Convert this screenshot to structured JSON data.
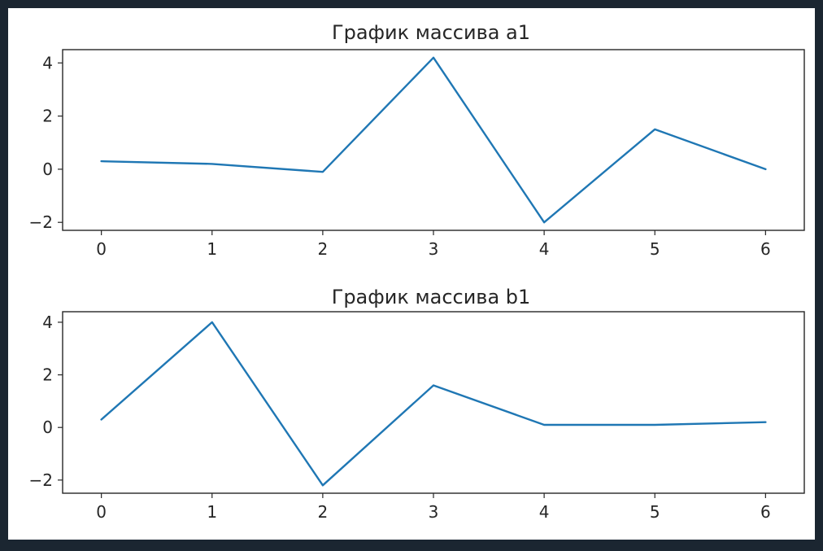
{
  "chart_data": [
    {
      "type": "line",
      "title": "График массива a1",
      "x": [
        0,
        1,
        2,
        3,
        4,
        5,
        6
      ],
      "series": [
        {
          "values": [
            0.3,
            0.2,
            -0.1,
            4.2,
            -2.0,
            1.5,
            0.0
          ]
        }
      ],
      "xlim": [
        -0.35,
        6.35
      ],
      "ylim": [
        -2.3,
        4.5
      ],
      "xticks": [
        "0",
        "1",
        "2",
        "3",
        "4",
        "5",
        "6"
      ],
      "yticks": [
        4,
        2,
        0,
        -2
      ],
      "ytick_labels": [
        "4",
        "2",
        "0",
        "−2"
      ],
      "grid": false,
      "color": "#1f77b4"
    },
    {
      "type": "line",
      "title": "График массива b1",
      "x": [
        0,
        1,
        2,
        3,
        4,
        5,
        6
      ],
      "series": [
        {
          "values": [
            0.3,
            4.0,
            -2.2,
            1.6,
            0.1,
            0.1,
            0.2
          ]
        }
      ],
      "xlim": [
        -0.35,
        6.35
      ],
      "ylim": [
        -2.5,
        4.4
      ],
      "xticks": [
        "0",
        "1",
        "2",
        "3",
        "4",
        "5",
        "6"
      ],
      "yticks": [
        4,
        2,
        0,
        -2
      ],
      "ytick_labels": [
        "4",
        "2",
        "0",
        "−2"
      ],
      "grid": false,
      "color": "#1f77b4"
    }
  ]
}
